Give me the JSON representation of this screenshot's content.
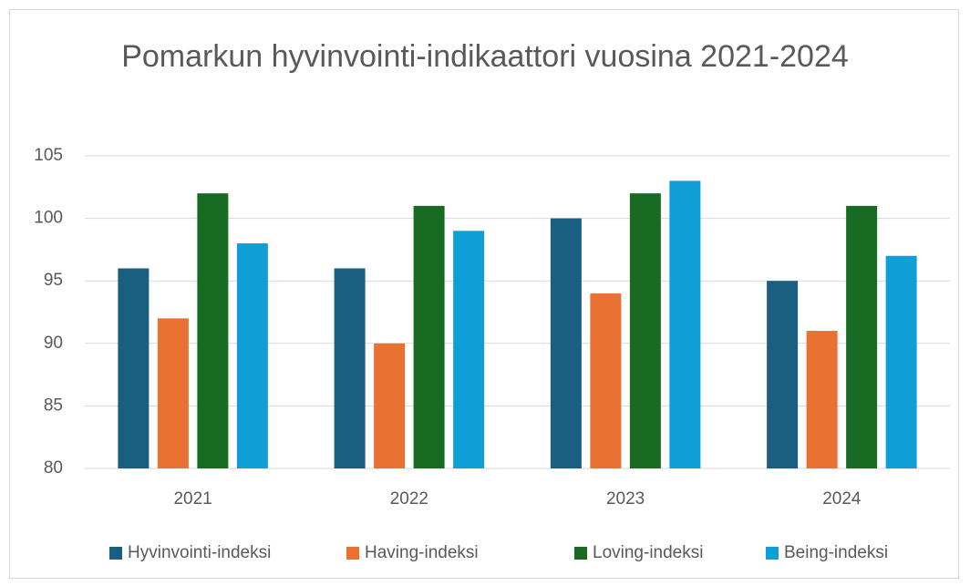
{
  "chart_data": {
    "type": "bar",
    "title": "Pomarkun hyvinvointi-indikaattori vuosina 2021-2024",
    "categories": [
      "2021",
      "2022",
      "2023",
      "2024"
    ],
    "series": [
      {
        "name": "Hyvinvointi-indeksi",
        "color": "#1a5e80",
        "values": [
          96,
          96,
          100,
          95
        ]
      },
      {
        "name": "Having-indeksi",
        "color": "#e97132",
        "values": [
          92,
          90,
          94,
          91
        ]
      },
      {
        "name": "Loving-indeksi",
        "color": "#196b24",
        "values": [
          102,
          101,
          102,
          101
        ]
      },
      {
        "name": "Being-indeksi",
        "color": "#0f9ed5",
        "values": [
          98,
          99,
          103,
          97
        ]
      }
    ],
    "ylim": [
      80,
      105
    ],
    "yticks": [
      80,
      85,
      90,
      95,
      100,
      105
    ],
    "grid": true,
    "legend": "bottom"
  }
}
